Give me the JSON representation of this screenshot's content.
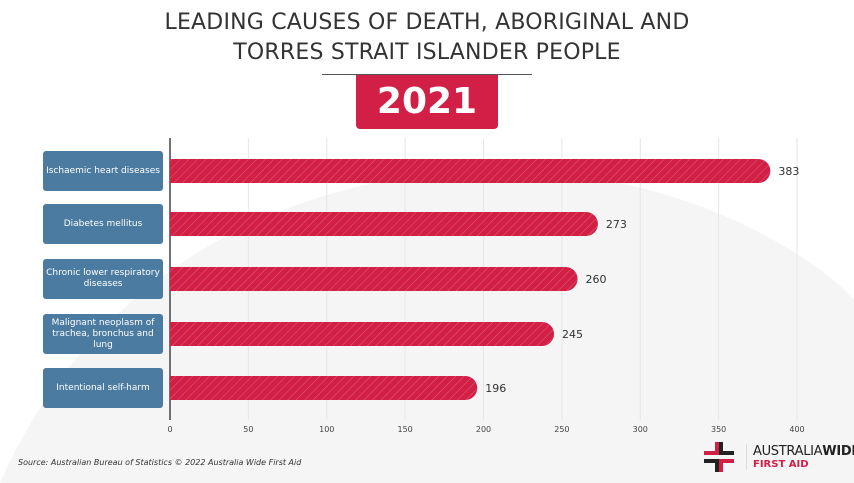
{
  "header": {
    "title_line1": "LEADING CAUSES OF DEATH, ABORIGINAL AND",
    "title_line2": "TORRES STRAIT ISLANDER PEOPLE",
    "year": "2021"
  },
  "chart_data": {
    "type": "bar",
    "orientation": "horizontal",
    "categories": [
      "Ischaemic heart diseases",
      "Diabetes mellitus",
      "Chronic lower respiratory diseases",
      "Malignant neoplasm of trachea, bronchus and lung",
      "Intentional self-harm"
    ],
    "values": [
      383,
      273,
      260,
      245,
      196
    ],
    "xlim": [
      0,
      400
    ],
    "xticks": [
      0,
      50,
      100,
      150,
      200,
      250,
      300,
      350,
      400
    ],
    "grid": true,
    "bar_color": "#d11f45",
    "label_color": "#4b7ba0"
  },
  "footer": {
    "source": "Source: Australian Bureau of Statistics © 2022 Australia Wide First Aid",
    "logo_line1_a": "AUSTRALIA",
    "logo_line1_b": "WIDE",
    "logo_line2": "FIRST AID"
  }
}
